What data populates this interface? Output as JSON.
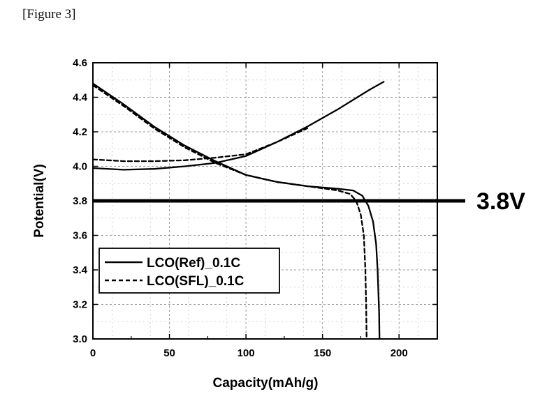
{
  "figure_label": "[Figure 3]",
  "chart_data": {
    "type": "line",
    "title": "",
    "xlabel": "Capacity(mAh/g)",
    "ylabel": "Potential(V)",
    "xlim": [
      0,
      225
    ],
    "ylim": [
      3.0,
      4.6
    ],
    "xticks": [
      0,
      50,
      100,
      150,
      200
    ],
    "yticks": [
      3.0,
      3.2,
      3.4,
      3.6,
      3.8,
      4.0,
      4.2,
      4.4,
      4.6
    ],
    "grid": true,
    "legend_position": "lower-left",
    "reference_line": {
      "y": 3.8,
      "label": "3.8V"
    },
    "series": [
      {
        "name": "LCO(Ref)_0.1C",
        "style": "solid",
        "color": "#000000",
        "segments": [
          {
            "label": "charge",
            "x": [
              0,
              20,
              40,
              60,
              80,
              100,
              120,
              140,
              160,
              180,
              190
            ],
            "y": [
              3.99,
              3.98,
              3.985,
              4.0,
              4.02,
              4.06,
              4.14,
              4.23,
              4.33,
              4.44,
              4.49
            ]
          },
          {
            "label": "discharge",
            "x": [
              0,
              20,
              40,
              60,
              80,
              100,
              120,
              140,
              160,
              170,
              176,
              180,
              183,
              185,
              186,
              187,
              187.2
            ],
            "y": [
              4.48,
              4.36,
              4.23,
              4.12,
              4.03,
              3.95,
              3.91,
              3.885,
              3.87,
              3.86,
              3.83,
              3.77,
              3.68,
              3.55,
              3.4,
              3.15,
              3.0
            ]
          }
        ]
      },
      {
        "name": "LCO(SFL)_0.1C",
        "style": "dashed",
        "color": "#000000",
        "segments": [
          {
            "label": "charge",
            "x": [
              0,
              20,
              40,
              60,
              80,
              100,
              120,
              140
            ],
            "y": [
              4.04,
              4.03,
              4.03,
              4.035,
              4.05,
              4.07,
              4.14,
              4.22
            ]
          },
          {
            "label": "discharge",
            "x": [
              0,
              20,
              40,
              60,
              80,
              100,
              120,
              140,
              160,
              168,
              172,
              175,
              177,
              178,
              178.5,
              178.8
            ],
            "y": [
              4.47,
              4.35,
              4.22,
              4.11,
              4.02,
              3.95,
              3.91,
              3.885,
              3.86,
              3.84,
              3.8,
              3.72,
              3.6,
              3.4,
              3.2,
              3.0
            ]
          }
        ]
      }
    ]
  }
}
